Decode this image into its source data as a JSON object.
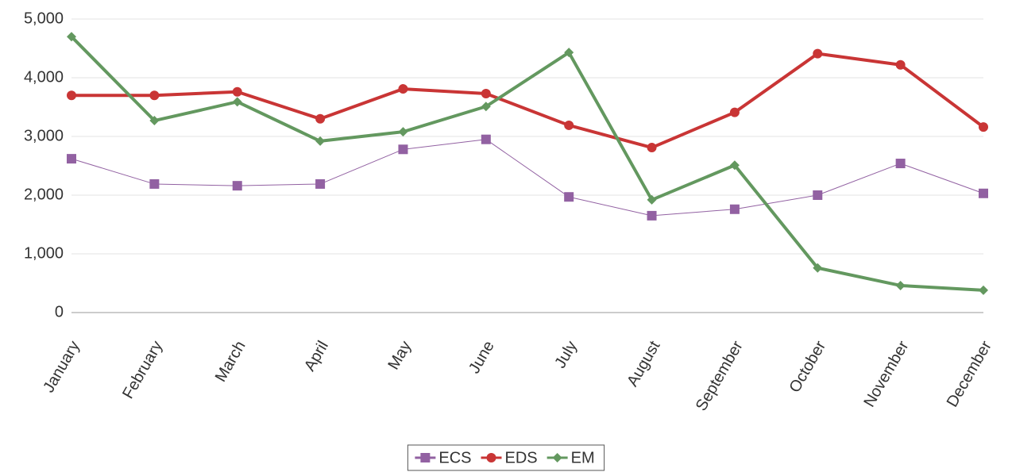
{
  "chart_data": {
    "type": "line",
    "categories": [
      "January",
      "February",
      "March",
      "April",
      "May",
      "June",
      "July",
      "August",
      "September",
      "October",
      "November",
      "December"
    ],
    "series": [
      {
        "name": "ECS",
        "color": "#9261a2",
        "marker": "square",
        "values": [
          2620,
          2190,
          2160,
          2190,
          2780,
          2950,
          1970,
          1650,
          1760,
          2000,
          2540,
          2030
        ]
      },
      {
        "name": "EDS",
        "color": "#c93535",
        "marker": "circle",
        "values": [
          3700,
          3700,
          3760,
          3300,
          3810,
          3730,
          3190,
          2810,
          3410,
          4410,
          4220,
          3160
        ]
      },
      {
        "name": "EM",
        "color": "#63985f",
        "marker": "diamond",
        "values": [
          4700,
          3270,
          3590,
          2920,
          3080,
          3510,
          4430,
          1920,
          2510,
          760,
          460,
          380
        ]
      }
    ],
    "ylim": [
      0,
      5000
    ],
    "yticks": [
      0,
      {
        "value": 1000,
        "label": "1,000"
      },
      {
        "value": 2000,
        "label": "2,000"
      },
      {
        "value": 3000,
        "label": "3,000"
      },
      {
        "value": 4000,
        "label": "4,000"
      },
      {
        "value": 5000,
        "label": "5,000"
      }
    ],
    "grid": true,
    "legend": "bottom"
  }
}
